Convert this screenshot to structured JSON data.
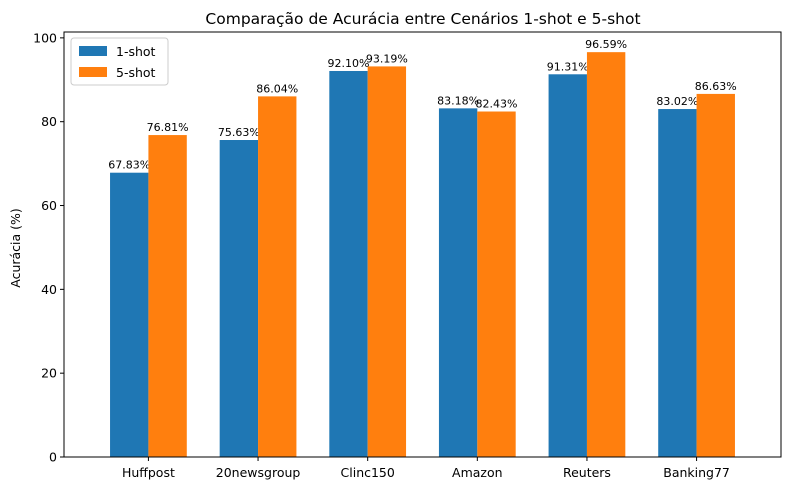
{
  "chart_data": {
    "type": "bar",
    "title": "Comparação de Acurácia entre Cenários 1-shot e 5-shot",
    "xlabel": "",
    "ylabel": "Acurácia (%)",
    "ylim": [
      0,
      101.4
    ],
    "yticks": [
      0,
      20,
      40,
      60,
      80,
      100
    ],
    "categories": [
      "Huffpost",
      "20newsgroup",
      "Clinc150",
      "Amazon",
      "Reuters",
      "Banking77"
    ],
    "series": [
      {
        "name": "1-shot",
        "color": "#1f77b4",
        "values": [
          67.83,
          75.63,
          92.1,
          83.18,
          91.31,
          83.02
        ],
        "labels": [
          "67.83%",
          "75.63%",
          "92.10%",
          "83.18%",
          "91.31%",
          "83.02%"
        ]
      },
      {
        "name": "5-shot",
        "color": "#ff7f0e",
        "values": [
          76.81,
          86.04,
          93.19,
          82.43,
          96.59,
          86.63
        ],
        "labels": [
          "76.81%",
          "86.04%",
          "93.19%",
          "82.43%",
          "96.59%",
          "86.63%"
        ]
      }
    ],
    "legend": "top-left",
    "grid": false
  }
}
